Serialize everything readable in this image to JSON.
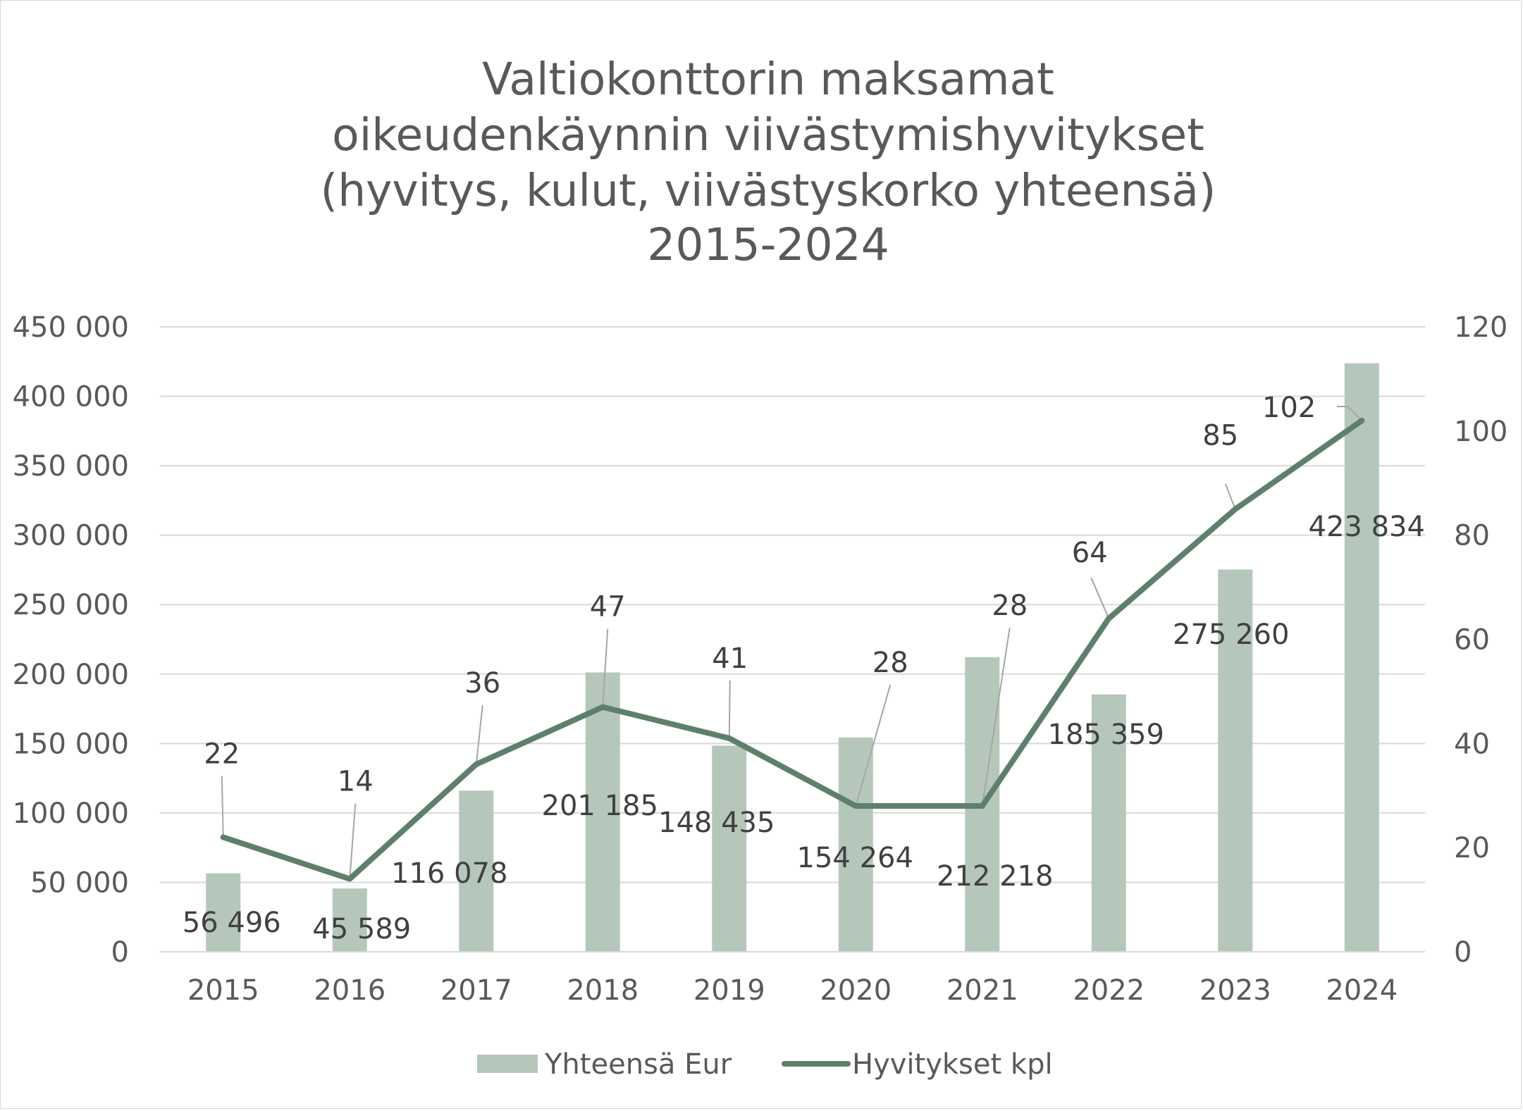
{
  "chart_data": {
    "type": "bar",
    "title_lines": [
      "Valtiokonttorin maksamat",
      "oikeudenkäynnin viivästymishyvitykset",
      "(hyvitys, kulut, viivästyskorko yhteensä)",
      "2015-2024"
    ],
    "categories": [
      "2015",
      "2016",
      "2017",
      "2018",
      "2019",
      "2020",
      "2021",
      "2022",
      "2023",
      "2024"
    ],
    "series": [
      {
        "name": "Yhteensä Eur",
        "type": "bar",
        "axis": "left",
        "color": "#b5c7bb",
        "values": [
          56496,
          45589,
          116078,
          201185,
          148435,
          154264,
          212218,
          185359,
          275260,
          423834
        ],
        "labels": [
          "56 496",
          "45 589",
          "116 078",
          "201 185",
          "148 435",
          "154 264",
          "212 218",
          "185 359",
          "275 260",
          "423 834"
        ]
      },
      {
        "name": "Hyvitykset kpl",
        "type": "line",
        "axis": "right",
        "color": "#5e7f6c",
        "values": [
          22,
          14,
          36,
          47,
          41,
          28,
          28,
          64,
          85,
          102
        ],
        "labels": [
          "22",
          "14",
          "36",
          "47",
          "41",
          "28",
          "28",
          "64",
          "85",
          "102"
        ]
      }
    ],
    "y_left": {
      "min": 0,
      "max": 450000,
      "ticks": [
        0,
        50000,
        100000,
        150000,
        200000,
        250000,
        300000,
        350000,
        400000,
        450000
      ],
      "tick_labels": [
        "0",
        "50 000",
        "100 000",
        "150 000",
        "200 000",
        "250 000",
        "300 000",
        "350 000",
        "400 000",
        "450 000"
      ]
    },
    "y_right": {
      "min": 0,
      "max": 120,
      "ticks": [
        0,
        20,
        40,
        60,
        80,
        100,
        120
      ],
      "tick_labels": [
        "0",
        "20",
        "40",
        "60",
        "80",
        "100",
        "120"
      ]
    },
    "grid": true,
    "legend_position": "bottom"
  }
}
